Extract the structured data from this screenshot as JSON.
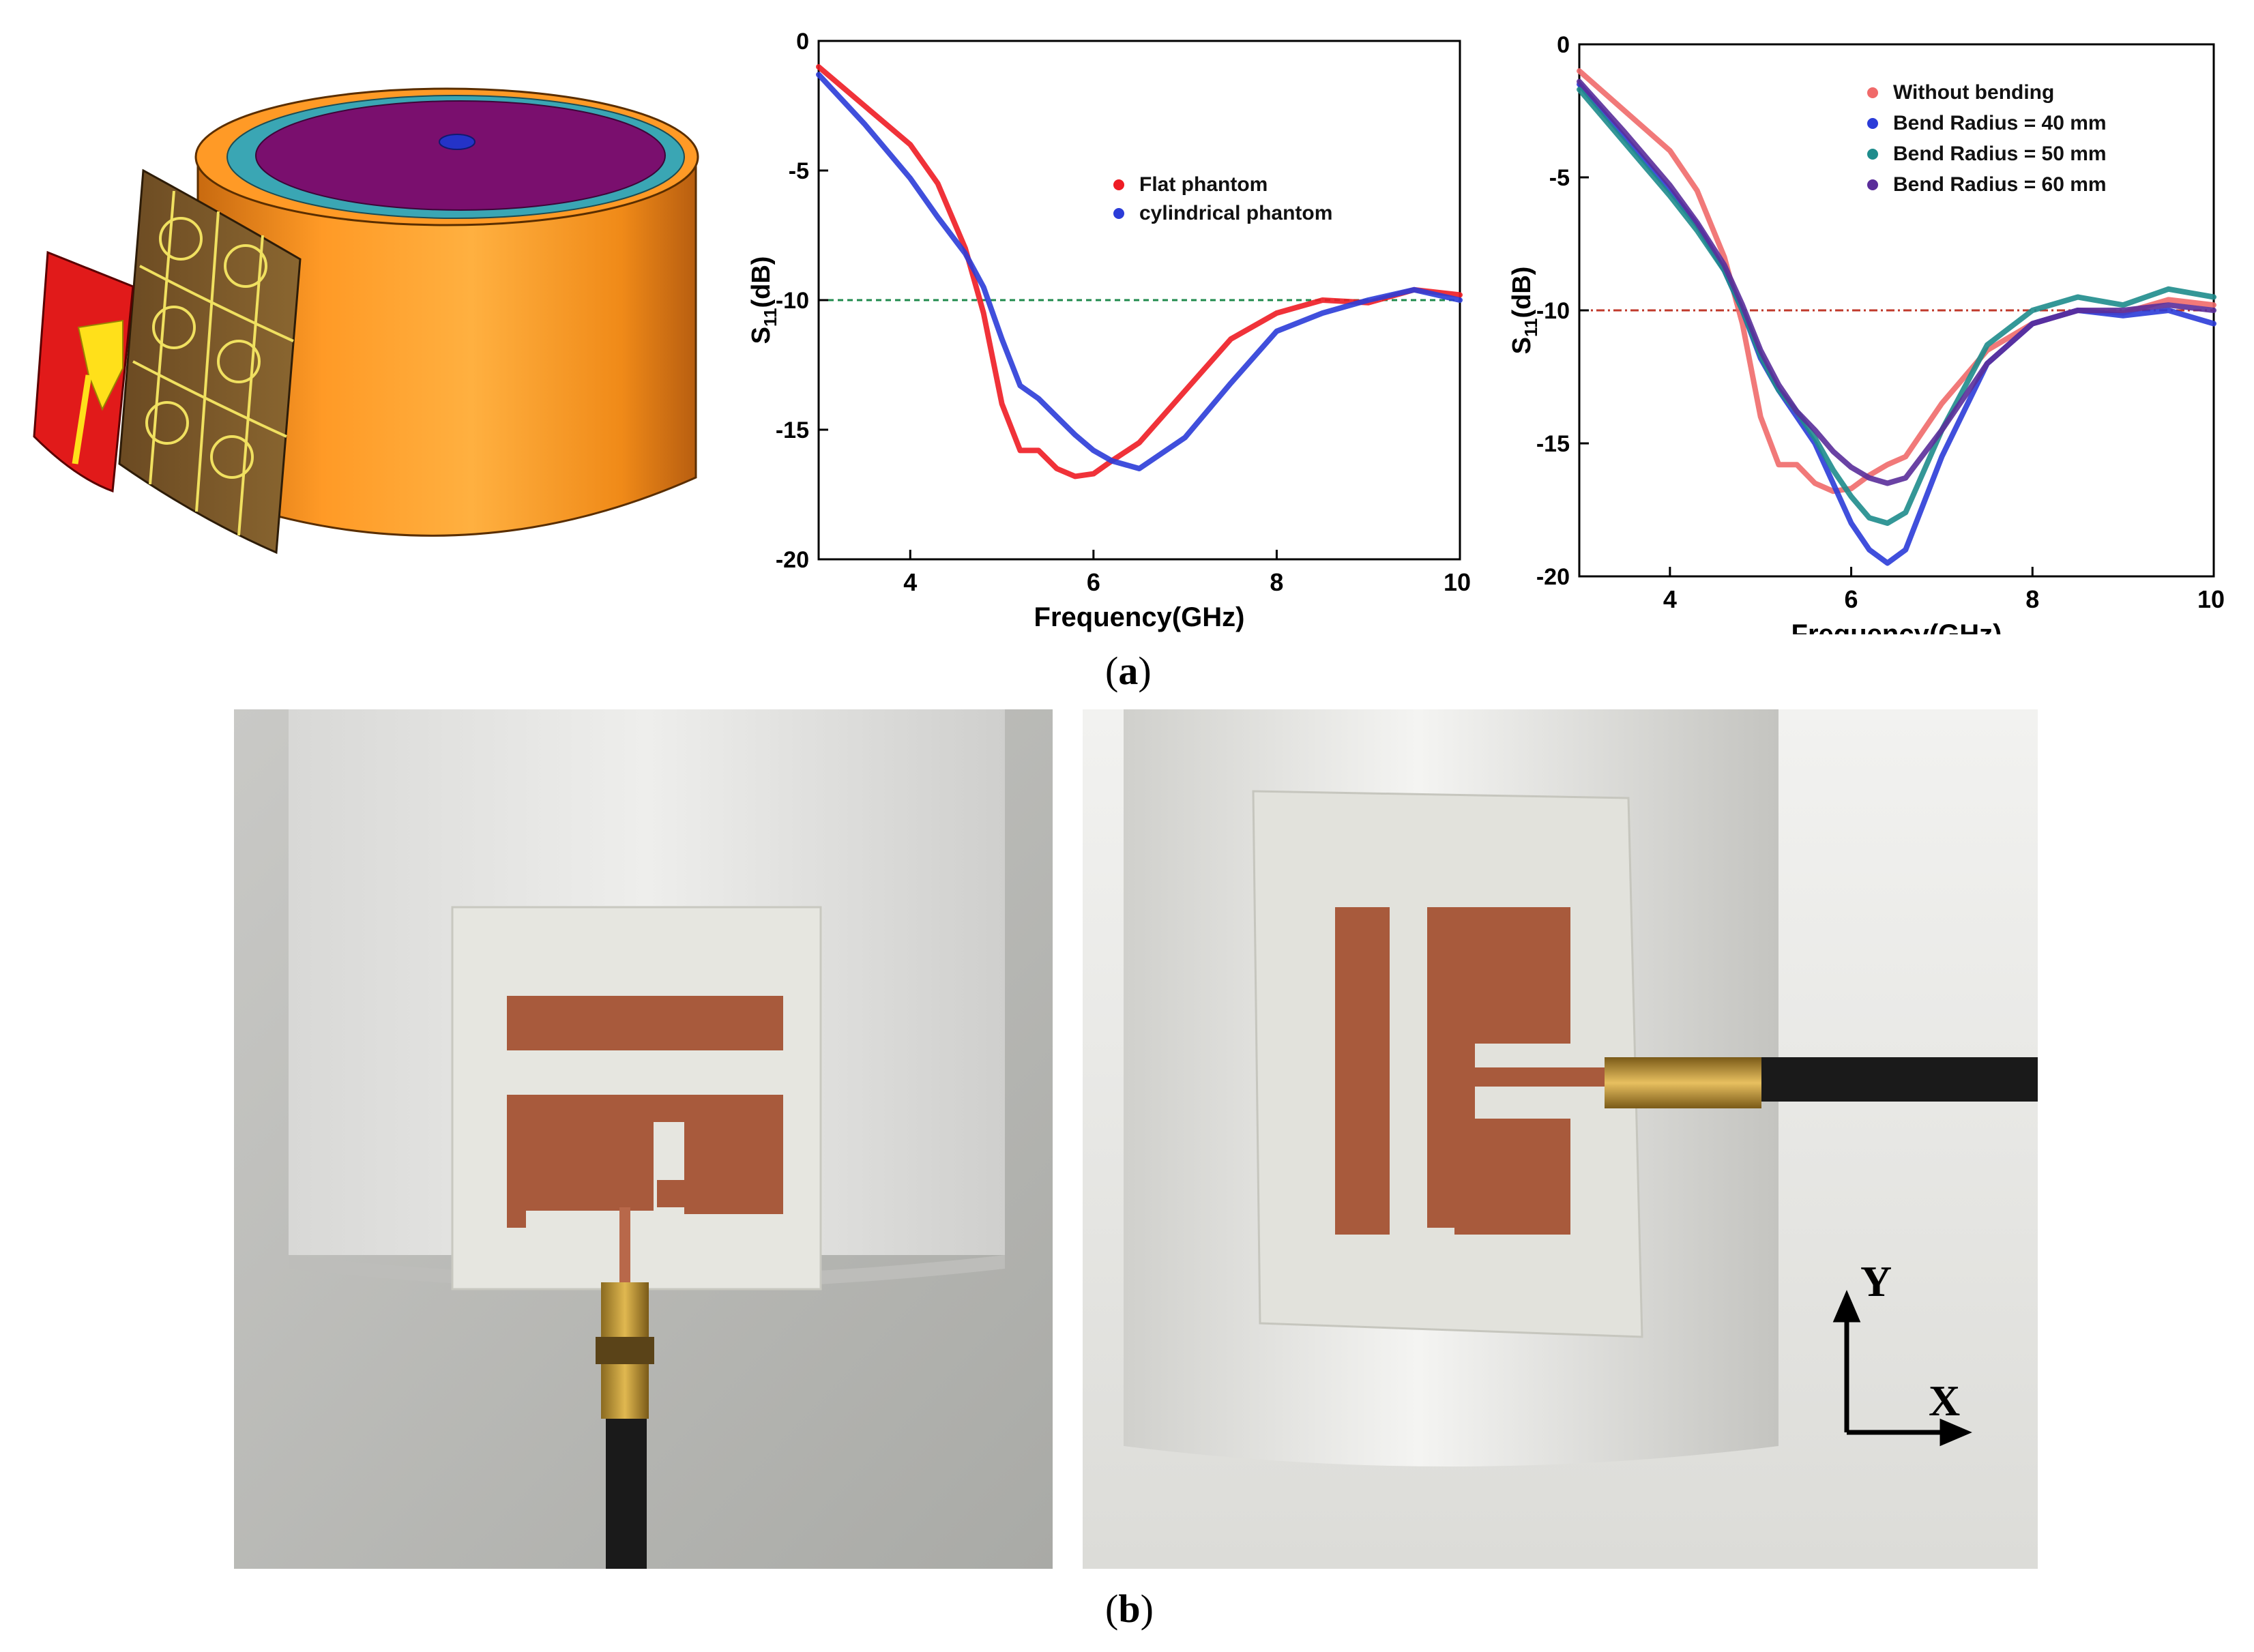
{
  "figure": {
    "caption_a": {
      "open": "(",
      "letter": "a",
      "close": ")"
    },
    "caption_b": {
      "open": "(",
      "letter": "b",
      "close": ")"
    },
    "axes_labels": {
      "y": "Y",
      "x": "X"
    }
  },
  "colors": {
    "red": "#ee1c24",
    "blue": "#2b3cd8",
    "teal": "#1e8c8c",
    "purple": "#5a2d9a",
    "light_red": "#f06a6a",
    "copper": "#a85a3c",
    "orange": "#ff9420",
    "magenta": "#7a0f6e",
    "cyan": "#3aa6b4"
  },
  "chart_data": [
    {
      "type": "line",
      "xlabel": "Frequency(GHz)",
      "ylabel": {
        "main": "S",
        "sub": "11",
        "rest": "(dB)"
      },
      "xlim": [
        3,
        10
      ],
      "ylim": [
        -20,
        0
      ],
      "xticks": [
        "4",
        "6",
        "8",
        "10"
      ],
      "yticks": [
        "0",
        "-5",
        "-10",
        "-15",
        "-20"
      ],
      "reference_line": -10,
      "legend_position": "center-right",
      "x": [
        3,
        3.5,
        4,
        4.3,
        4.6,
        4.8,
        5,
        5.2,
        5.4,
        5.6,
        5.8,
        6,
        6.2,
        6.5,
        7,
        7.5,
        8,
        8.5,
        9,
        9.5,
        10
      ],
      "series": [
        {
          "name": "Flat phantom",
          "color": "#ee1c24",
          "values": [
            -1.0,
            -2.5,
            -4.0,
            -5.5,
            -8.0,
            -10.5,
            -14.0,
            -15.8,
            -15.8,
            -16.5,
            -16.8,
            -16.7,
            -16.2,
            -15.5,
            -13.5,
            -11.5,
            -10.5,
            -10.0,
            -10.1,
            -9.6,
            -9.8
          ]
        },
        {
          "name": "cylindrical phantom",
          "color": "#2b3cd8",
          "values": [
            -1.3,
            -3.2,
            -5.3,
            -6.8,
            -8.2,
            -9.5,
            -11.5,
            -13.3,
            -13.8,
            -14.5,
            -15.2,
            -15.8,
            -16.2,
            -16.5,
            -15.3,
            -13.2,
            -11.2,
            -10.5,
            -10.0,
            -9.6,
            -10.0
          ]
        }
      ]
    },
    {
      "type": "line",
      "xlabel": "Frequency(GHz)",
      "ylabel": {
        "main": "S",
        "sub": "11",
        "rest": "(dB)"
      },
      "xlim": [
        3,
        10
      ],
      "ylim": [
        -20,
        0
      ],
      "xticks": [
        "4",
        "6",
        "8",
        "10"
      ],
      "yticks": [
        "0",
        "-5",
        "-10",
        "-15",
        "-20"
      ],
      "reference_line": -10,
      "legend_position": "top-right",
      "x": [
        3,
        3.5,
        4,
        4.3,
        4.6,
        4.8,
        5,
        5.2,
        5.4,
        5.6,
        5.8,
        6,
        6.2,
        6.4,
        6.6,
        7,
        7.5,
        8,
        8.5,
        9,
        9.5,
        10
      ],
      "series": [
        {
          "name": "Without bending",
          "color": "#f06a6a",
          "values": [
            -1.0,
            -2.5,
            -4.0,
            -5.5,
            -8.0,
            -10.5,
            -14.0,
            -15.8,
            -15.8,
            -16.5,
            -16.8,
            -16.7,
            -16.2,
            -15.8,
            -15.5,
            -13.5,
            -11.5,
            -10.5,
            -10.0,
            -10.1,
            -9.6,
            -9.8
          ]
        },
        {
          "name": "Bend Radius = 40 mm",
          "color": "#2b3cd8",
          "values": [
            -1.5,
            -3.5,
            -5.5,
            -6.8,
            -8.5,
            -10.0,
            -11.8,
            -13.0,
            -14.0,
            -15.0,
            -16.5,
            -18.0,
            -19.0,
            -19.5,
            -19.0,
            -15.5,
            -12.0,
            -10.5,
            -10.0,
            -10.2,
            -10.0,
            -10.5
          ]
        },
        {
          "name": "Bend Radius = 50 mm",
          "color": "#1e8c8c",
          "values": [
            -1.7,
            -3.7,
            -5.7,
            -7.0,
            -8.5,
            -10.0,
            -11.7,
            -13.0,
            -13.8,
            -14.8,
            -16.0,
            -17.0,
            -17.8,
            -18.0,
            -17.6,
            -14.5,
            -11.3,
            -10.0,
            -9.5,
            -9.8,
            -9.2,
            -9.5
          ]
        },
        {
          "name": "Bend Radius = 60 mm",
          "color": "#5a2d9a",
          "values": [
            -1.4,
            -3.3,
            -5.3,
            -6.7,
            -8.3,
            -9.8,
            -11.5,
            -12.8,
            -13.8,
            -14.5,
            -15.3,
            -15.9,
            -16.3,
            -16.5,
            -16.3,
            -14.5,
            -12.0,
            -10.5,
            -10.0,
            -10.0,
            -9.8,
            -10.0
          ]
        }
      ]
    }
  ]
}
